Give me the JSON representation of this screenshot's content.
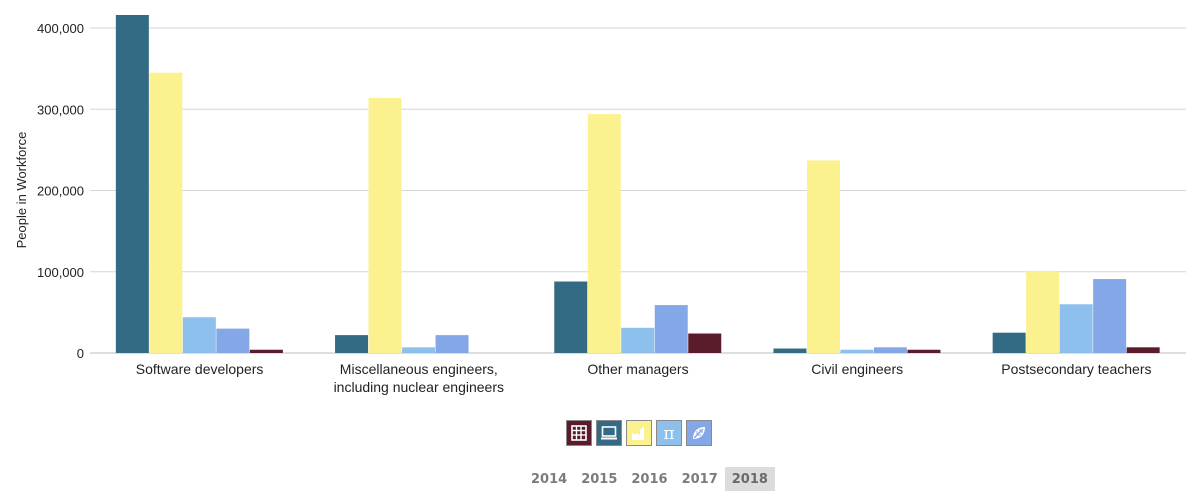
{
  "chart_data": {
    "type": "bar",
    "ylabel": "People in Workforce",
    "xlabel": "",
    "ylim": [
      0,
      420000
    ],
    "yticks": [
      0,
      100000,
      200000,
      300000,
      400000
    ],
    "ytick_labels": [
      "0",
      "100,000",
      "200,000",
      "300,000",
      "400,000"
    ],
    "grid": true,
    "categories": [
      [
        "Software developers"
      ],
      [
        "Miscellaneous engineers,",
        "including nuclear engineers"
      ],
      [
        "Other managers"
      ],
      [
        "Civil engineers"
      ],
      [
        "Postsecondary teachers"
      ]
    ],
    "series": [
      {
        "color": "#336a84",
        "values": [
          416000,
          22000,
          88000,
          5500,
          25000
        ]
      },
      {
        "color": "#fbf18e",
        "values": [
          345000,
          314000,
          294000,
          237000,
          100000
        ]
      },
      {
        "color": "#8dc0ec",
        "values": [
          44000,
          7000,
          31000,
          4000,
          60000
        ]
      },
      {
        "color": "#84a8e7",
        "values": [
          30000,
          22000,
          59000,
          7000,
          91000
        ]
      },
      {
        "color": "#5a1b2b",
        "values": [
          4000,
          0,
          24000,
          4000,
          7000
        ]
      }
    ]
  },
  "legend": [
    {
      "icon": "building-icon",
      "color": "#5a1b2b"
    },
    {
      "icon": "computer-icon",
      "color": "#336a84"
    },
    {
      "icon": "factory-icon",
      "color": "#fbf18e"
    },
    {
      "icon": "pi-icon",
      "color": "#8dc0ec"
    },
    {
      "icon": "leaf-icon",
      "color": "#84a8e7"
    }
  ],
  "years": [
    "2014",
    "2015",
    "2016",
    "2017",
    "2018"
  ],
  "selected_year": "2018"
}
